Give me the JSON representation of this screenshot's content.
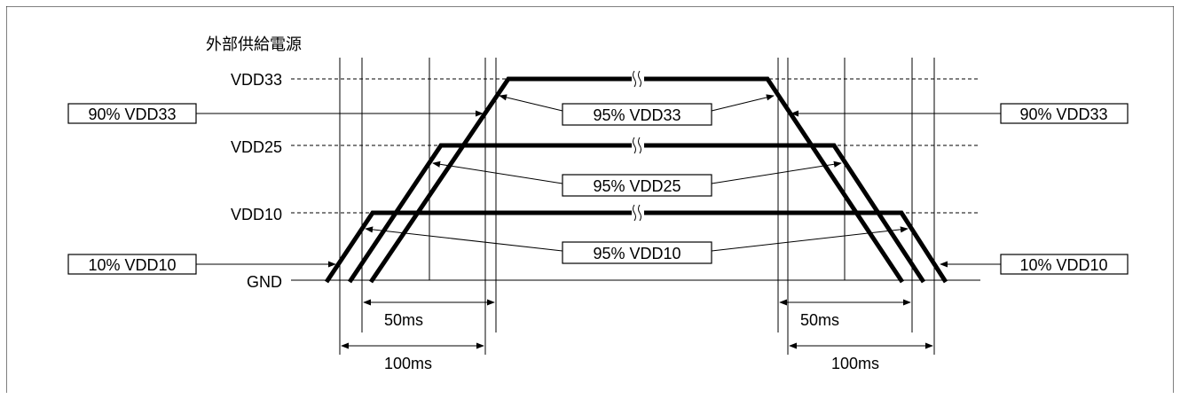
{
  "title": "外部供給電源",
  "levels": {
    "vdd33": "VDD33",
    "vdd25": "VDD25",
    "vdd10": "VDD10",
    "gnd": "GND"
  },
  "boxes": {
    "left_90": "90% VDD33",
    "right_90": "90% VDD33",
    "left_10": "10% VDD10",
    "right_10": "10% VDD10",
    "center_95_33": "95% VDD33",
    "center_95_25": "95% VDD25",
    "center_95_10": "95% VDD10"
  },
  "timings": {
    "left_50": "50ms",
    "left_100": "100ms",
    "right_50": "50ms",
    "right_100": "100ms"
  },
  "break_mark": "≈"
}
